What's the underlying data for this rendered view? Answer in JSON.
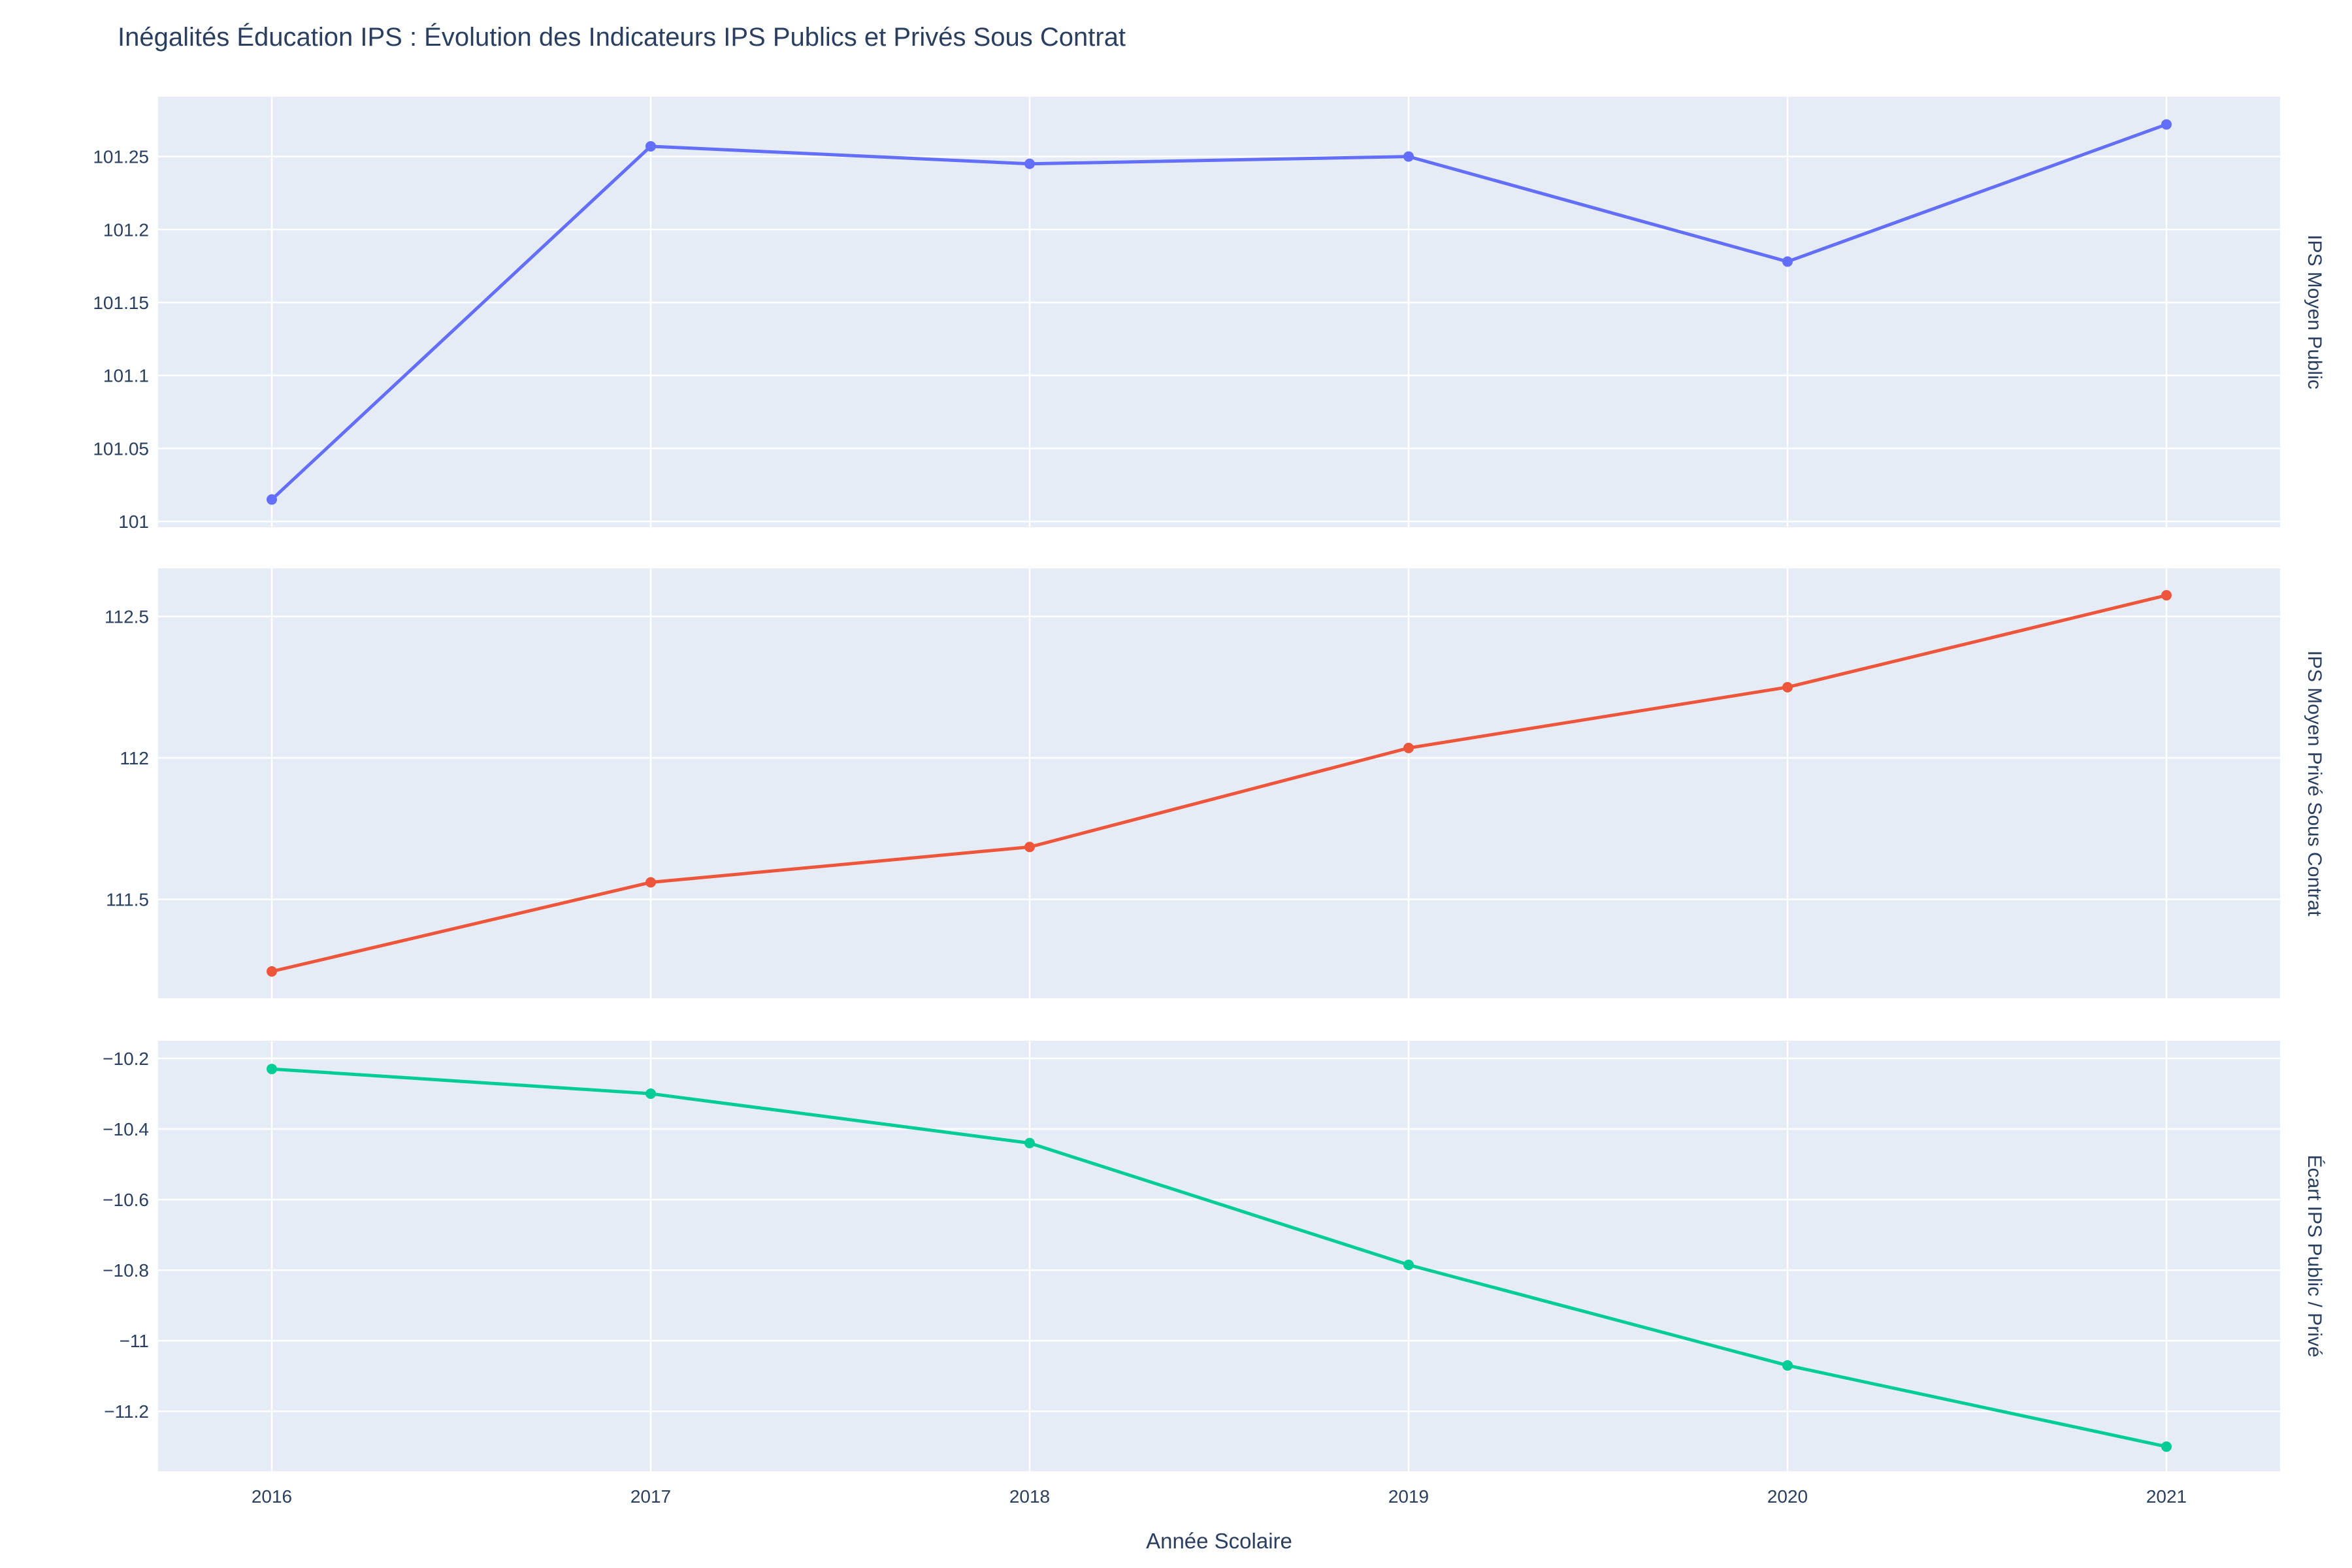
{
  "chart_data": {
    "type": "line",
    "title": "Inégalités Éducation IPS : Évolution des Indicateurs IPS Publics et Privés Sous Contrat",
    "xlabel": "Année Scolaire",
    "x": [
      2016,
      2017,
      2018,
      2019,
      2020,
      2021
    ],
    "x_ticks": [
      "2016",
      "2017",
      "2018",
      "2019",
      "2020",
      "2021"
    ],
    "xlim": [
      2015.7,
      2021.3
    ],
    "grid": true,
    "panels": [
      {
        "name": "IPS Moyen Public",
        "color": "#636efa",
        "values": [
          101.015,
          101.257,
          101.245,
          101.25,
          101.178,
          101.272
        ],
        "ylim": [
          100.996,
          101.291
        ],
        "ticks": [
          101,
          101.05,
          101.1,
          101.15,
          101.2,
          101.25
        ],
        "tick_labels": [
          "101",
          "101.05",
          "101.1",
          "101.15",
          "101.2",
          "101.25"
        ]
      },
      {
        "name": "IPS Moyen Privé Sous Contrat",
        "color": "#ef553b",
        "values": [
          111.245,
          111.56,
          111.685,
          112.035,
          112.25,
          112.575
        ],
        "ylim": [
          111.15,
          112.67
        ],
        "ticks": [
          111.5,
          112,
          112.5
        ],
        "tick_labels": [
          "111.5",
          "112",
          "112.5"
        ]
      },
      {
        "name": "Écart IPS Public / Privé",
        "color": "#00cc96",
        "values": [
          -10.23,
          -10.3,
          -10.44,
          -10.785,
          -11.07,
          -11.3
        ],
        "ylim": [
          -11.37,
          -10.15
        ],
        "ticks": [
          -10.2,
          -10.4,
          -10.6,
          -10.8,
          -11,
          -11.2
        ],
        "tick_labels": [
          "−10.2",
          "−10.4",
          "−10.6",
          "−10.8",
          "−11",
          "−11.2"
        ]
      }
    ]
  }
}
